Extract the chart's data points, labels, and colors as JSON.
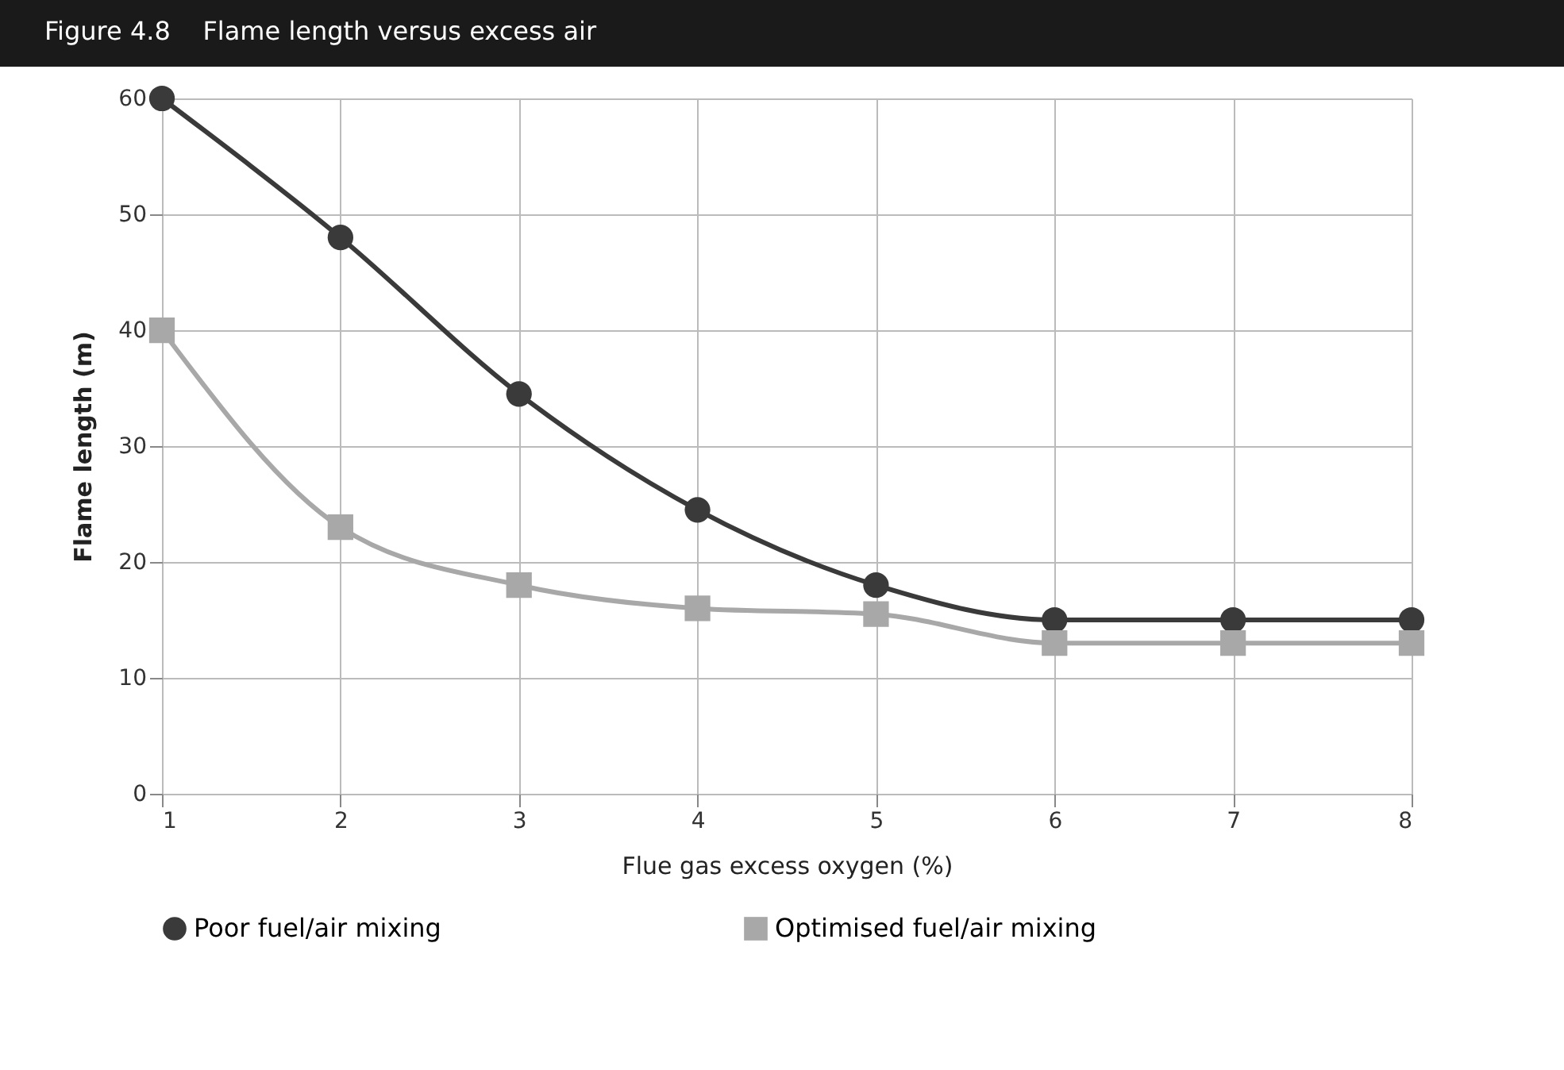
{
  "chart_data": {
    "type": "line",
    "title": "Figure 4.8    Flame length versus excess air",
    "xlabel": "Flue gas excess oxygen (%)",
    "ylabel": "Flame length (m)",
    "x": [
      1,
      2,
      3,
      4,
      5,
      6,
      7,
      8
    ],
    "series": [
      {
        "name": "Poor fuel/air mixing",
        "color": "#3a3a3a",
        "marker": "circle",
        "values": [
          60,
          48,
          34.5,
          24.5,
          18,
          15,
          15,
          15
        ]
      },
      {
        "name": "Optimised fuel/air mixing",
        "color": "#a8a8a8",
        "marker": "square",
        "values": [
          40,
          23,
          18,
          16,
          15.5,
          13,
          13,
          13
        ]
      }
    ],
    "xlim": [
      1,
      8
    ],
    "xticks": [
      1,
      2,
      3,
      4,
      5,
      6,
      7,
      8
    ],
    "ylim": [
      0,
      60
    ],
    "yticks": [
      0,
      10,
      20,
      30,
      40,
      50,
      60
    ],
    "grid": true,
    "legend": "bottom",
    "line_style": "solid"
  }
}
